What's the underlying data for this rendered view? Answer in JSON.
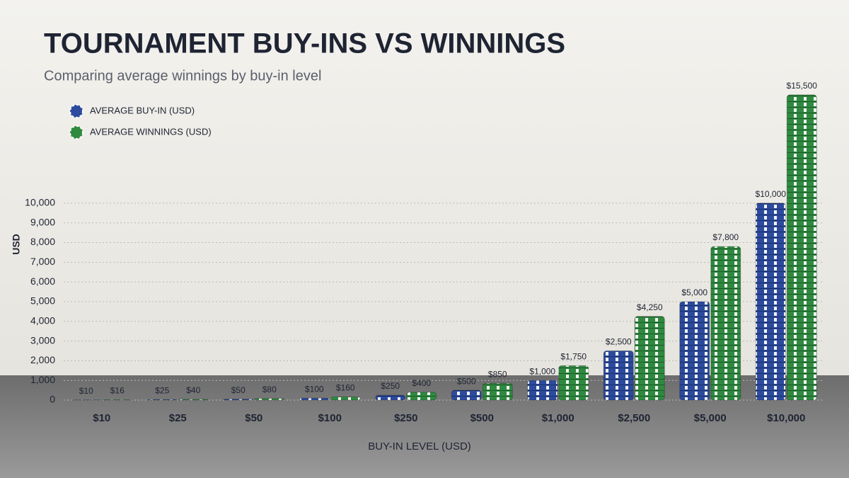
{
  "chart_data": {
    "type": "bar",
    "title": "TOURNAMENT BUY-INS VS WINNINGS",
    "subtitle": "Comparing average winnings by buy-in level",
    "x_label": "BUY-IN LEVEL (USD)",
    "y_label": "USD",
    "categories": [
      "$10",
      "$25",
      "$50",
      "$100",
      "$250",
      "$500",
      "$1,000",
      "$2,500",
      "$5,000",
      "$10,000"
    ],
    "series": [
      {
        "name": "AVERAGE BUY-IN (USD)",
        "color": "#2c4b9e",
        "values": [
          10,
          25,
          50,
          100,
          250,
          500,
          1000,
          2500,
          5000,
          10000
        ],
        "value_labels": [
          "$10",
          "$25",
          "$50",
          "$100",
          "$250",
          "$500",
          "$1,000",
          "$2,500",
          "$5,000",
          "$10,000"
        ]
      },
      {
        "name": "AVERAGE WINNINGS (USD)",
        "color": "#2f8a40",
        "values": [
          16,
          40,
          80,
          160,
          400,
          850,
          1750,
          4250,
          7800,
          15500
        ],
        "value_labels": [
          "$16",
          "$40",
          "$80",
          "$160",
          "$400",
          "$850",
          "$1,750",
          "$4,250",
          "$7,800",
          "$15,500"
        ]
      }
    ],
    "ylim": [
      0,
      16000
    ],
    "yticks": [
      0,
      {
        "value": 1000,
        "label": "1,000"
      },
      {
        "value": 2000,
        "label": "2,000"
      },
      {
        "value": 3000,
        "label": "3,000"
      },
      {
        "value": 4000,
        "label": "4,000"
      },
      {
        "value": 5000,
        "label": "5,000"
      },
      {
        "value": 6000,
        "label": "6,000"
      },
      {
        "value": 7000,
        "label": "7,000"
      },
      {
        "value": 8000,
        "label": "8,000"
      },
      {
        "value": 9000,
        "label": "9,000"
      },
      {
        "value": 10000,
        "label": "10,000"
      }
    ],
    "grid": true,
    "legend": "top-left"
  }
}
